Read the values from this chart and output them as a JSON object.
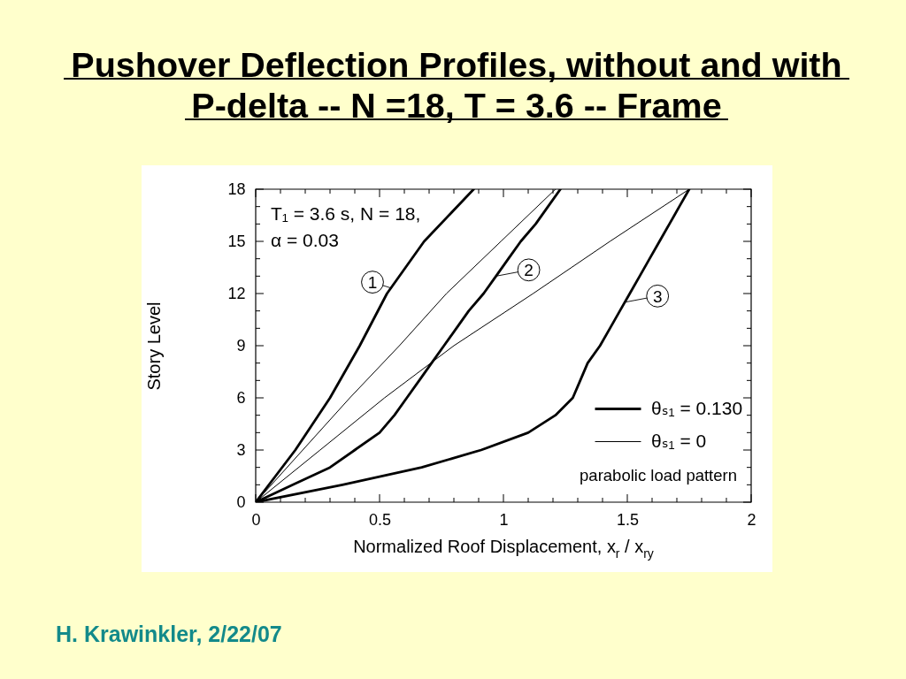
{
  "chart_data": {
    "type": "line",
    "title": "Pushover Deflection Profiles, without and with P-delta --  N =18, T = 3.6 -- Frame",
    "xlabel": "Normalized Roof Displacement, x$_{r}$ / x$_{ry}$",
    "ylabel": "Story Level",
    "xlim": [
      0,
      2
    ],
    "ylim": [
      0,
      18
    ],
    "xticks": [
      0,
      {
        "value": 0.1,
        "label": null
      },
      {
        "value": 0.2,
        "label": null
      },
      {
        "value": 0.3,
        "label": null
      },
      {
        "value": 0.4,
        "label": null
      },
      0.5,
      {
        "value": 0.6,
        "label": null
      },
      {
        "value": 0.7,
        "label": null
      },
      {
        "value": 0.8,
        "label": null
      },
      {
        "value": 0.9,
        "label": null
      },
      1,
      {
        "value": 1.1,
        "label": null
      },
      {
        "value": 1.2,
        "label": null
      },
      {
        "value": 1.3,
        "label": null
      },
      {
        "value": 1.4,
        "label": null
      },
      1.5,
      {
        "value": 1.6,
        "label": null
      },
      {
        "value": 1.7,
        "label": null
      },
      {
        "value": 1.8,
        "label": null
      },
      {
        "value": 1.9,
        "label": null
      },
      2
    ],
    "yticks": [
      0,
      {
        "value": 1,
        "label": null
      },
      {
        "value": 2,
        "label": null
      },
      3,
      {
        "value": 4,
        "label": null
      },
      {
        "value": 5,
        "label": null
      },
      6,
      {
        "value": 7,
        "label": null
      },
      {
        "value": 8,
        "label": null
      },
      9,
      {
        "value": 10,
        "label": null
      },
      {
        "value": 11,
        "label": null
      },
      12,
      {
        "value": 13,
        "label": null
      },
      {
        "value": 14,
        "label": null
      },
      15,
      {
        "value": 16,
        "label": null
      },
      {
        "value": 17,
        "label": null
      },
      18
    ],
    "legend": "bottom right",
    "series": [
      {
        "name": "θₛ₁ = 0.130",
        "color": "#000000",
        "x": [
          0,
          0.16,
          0.3,
          0.42,
          0.53,
          0.68,
          0.88
        ],
        "values": [
          0,
          3,
          6,
          9,
          12,
          15,
          18
        ]
      },
      {
        "color": "#000000",
        "x": [
          0,
          0.15,
          0.3,
          0.4,
          0.5,
          0.56,
          0.61,
          0.66,
          0.71,
          0.76,
          0.81,
          0.86,
          0.92,
          0.97,
          1.02,
          1.07,
          1.13,
          1.18,
          1.23
        ],
        "values": [
          0,
          1,
          2,
          3,
          4,
          5,
          6,
          7,
          8,
          9,
          10,
          11,
          12,
          13,
          14,
          15,
          16,
          17,
          18
        ]
      },
      {
        "color": "#000000",
        "x": [
          0,
          0.35,
          0.67,
          0.91,
          1.1,
          1.21,
          1.28,
          1.31,
          1.34,
          1.39,
          1.43,
          1.47,
          1.51,
          1.55,
          1.59,
          1.63,
          1.67,
          1.71,
          1.75
        ],
        "values": [
          0,
          1,
          2,
          3,
          4,
          5,
          6,
          7,
          8,
          9,
          10,
          11,
          12,
          13,
          14,
          15,
          16,
          17,
          18
        ]
      },
      {
        "name": "θₛ₁ = 0",
        "color": "#000000",
        "x": [
          0,
          0.19,
          0.38,
          0.58,
          0.77,
          0.99,
          1.21
        ],
        "values": [
          0,
          3,
          6,
          9,
          12,
          15,
          18
        ]
      },
      {
        "color": "#000000",
        "x": [
          0,
          0.26,
          0.52,
          0.8,
          1.12,
          1.43,
          1.75
        ],
        "values": [
          0,
          3,
          6,
          9,
          12,
          15,
          18
        ]
      }
    ],
    "annotations": [
      "T₁ = 3.6 s, N = 18,",
      "α = 0.03",
      "parabolic load pattern",
      {
        "text": "1",
        "x": 0.55,
        "y": 12.3
      },
      {
        "text": "2",
        "x": 0.97,
        "y": 13
      },
      {
        "text": "3",
        "x": 1.49,
        "y": 11.5
      },
      "H. Krawinkler, 2/22/07"
    ]
  }
}
